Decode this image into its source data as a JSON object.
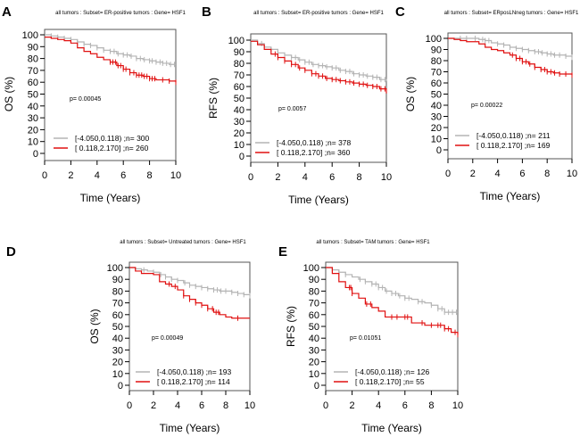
{
  "chart_data": [
    {
      "type": "line",
      "panel": "A",
      "title": "all tumors : Subset= ER-positive tumors : Gene= HSF1",
      "xlabel": "Time (Years)",
      "ylabel": "OS (%)",
      "xlim": [
        0,
        10
      ],
      "ylim": [
        0,
        100
      ],
      "xticks": [
        "0",
        "2",
        "4",
        "6",
        "8",
        "10"
      ],
      "yticks": [
        "0",
        "10",
        "20",
        "30",
        "40",
        "50",
        "60",
        "70",
        "80",
        "90",
        "100"
      ],
      "p_value": "p= 0.00045",
      "series": [
        {
          "name": "[-4.050,0.118) ;n= 300",
          "color": "#b4b4b4",
          "x": [
            0,
            0.5,
            1,
            1.5,
            2,
            2.5,
            3,
            3.5,
            4,
            4.5,
            5,
            5.5,
            6,
            6.5,
            7,
            7.5,
            8,
            8.5,
            9,
            9.5,
            10
          ],
          "y": [
            100,
            99,
            98,
            97,
            96,
            94,
            92,
            91,
            89,
            87,
            86,
            84,
            83,
            82,
            80,
            79,
            78,
            77,
            76,
            75,
            75
          ],
          "censor_x": [
            0.5,
            1,
            1.5,
            2,
            2.5,
            3,
            3.5,
            4,
            4.5,
            5,
            5.3,
            5.6,
            6,
            6.3,
            6.6,
            7,
            7.3,
            7.6,
            8,
            8.2,
            8.5,
            8.8,
            9,
            9.3,
            9.6,
            9.9
          ]
        },
        {
          "name": "[ 0.118,2.170] ;n= 260",
          "color": "#e01010",
          "x": [
            0,
            0.5,
            1,
            1.5,
            2,
            2.5,
            3,
            3.5,
            4,
            4.5,
            5,
            5.5,
            6,
            6.5,
            7,
            7.5,
            8,
            8.5,
            9,
            9.5,
            10
          ],
          "y": [
            98,
            97,
            96,
            95,
            93,
            89,
            86,
            84,
            81,
            79,
            77,
            74,
            71,
            68,
            66,
            65,
            63,
            62,
            62,
            61,
            60
          ],
          "censor_x": [
            5,
            5.2,
            5.4,
            5.6,
            5.8,
            6,
            6.2,
            6.5,
            6.8,
            7,
            7.2,
            7.4,
            7.6,
            7.8,
            8,
            8.2,
            8.4,
            9,
            9.5,
            10
          ]
        }
      ]
    },
    {
      "type": "line",
      "panel": "B",
      "title": "all tumors : Subset= ER-positive tumors : Gene= HSF1",
      "xlabel": "Time (Years)",
      "ylabel": "RFS (%)",
      "xlim": [
        0,
        10
      ],
      "ylim": [
        0,
        100
      ],
      "xticks": [
        "0",
        "2",
        "4",
        "6",
        "8",
        "10"
      ],
      "yticks": [
        "0",
        "10",
        "20",
        "30",
        "40",
        "50",
        "60",
        "70",
        "80",
        "90",
        "100"
      ],
      "p_value": "p= 0.0057",
      "series": [
        {
          "name": "[-4.050,0.118) ;n= 378",
          "color": "#b4b4b4",
          "x": [
            0,
            0.5,
            1,
            1.5,
            2,
            2.5,
            3,
            3.5,
            4,
            4.5,
            5,
            5.5,
            6,
            6.5,
            7,
            7.5,
            8,
            8.5,
            9,
            9.5,
            10
          ],
          "y": [
            100,
            97,
            94,
            92,
            89,
            87,
            85,
            83,
            81,
            79,
            78,
            77,
            76,
            74,
            73,
            71,
            70,
            69,
            68,
            66,
            65
          ],
          "censor_x": [
            0.8,
            1.5,
            2,
            2.5,
            3,
            3.3,
            3.6,
            4,
            4.3,
            4.6,
            5,
            5.3,
            5.6,
            6,
            6.3,
            6.6,
            7,
            7.3,
            7.6,
            8,
            8.3,
            8.6,
            9,
            9.3,
            9.6,
            9.9
          ]
        },
        {
          "name": "[ 0.118,2.170] ;n= 360",
          "color": "#e01010",
          "x": [
            0,
            0.5,
            1,
            1.5,
            2,
            2.5,
            3,
            3.5,
            4,
            4.5,
            5,
            5.5,
            6,
            6.5,
            7,
            7.5,
            8,
            8.5,
            9,
            9.5,
            10
          ],
          "y": [
            99,
            96,
            92,
            88,
            85,
            82,
            79,
            76,
            74,
            71,
            69,
            67,
            66,
            65,
            64,
            63,
            62,
            61,
            60,
            58,
            54
          ],
          "censor_x": [
            1.8,
            2,
            2.5,
            3,
            3.3,
            3.6,
            4,
            4.5,
            4.8,
            5,
            5.3,
            5.6,
            6,
            6.3,
            6.6,
            7,
            7.3,
            7.6,
            8,
            8.3,
            8.6,
            9,
            9.3,
            9.6,
            9.9
          ]
        }
      ]
    },
    {
      "type": "line",
      "panel": "C",
      "title": "all tumors : Subset= ERposLNneg tumors : Gene= HSF1",
      "xlabel": "Time (Years)",
      "ylabel": "OS (%)",
      "xlim": [
        0,
        10
      ],
      "ylim": [
        0,
        100
      ],
      "xticks": [
        "0",
        "2",
        "4",
        "6",
        "8",
        "10"
      ],
      "yticks": [
        "0",
        "10",
        "20",
        "30",
        "40",
        "50",
        "60",
        "70",
        "80",
        "90",
        "100"
      ],
      "p_value": "p= 0.00022",
      "series": [
        {
          "name": "[-4.050,0.118) ;n= 211",
          "color": "#b4b4b4",
          "x": [
            0,
            0.5,
            1,
            1.5,
            2,
            2.5,
            3,
            3.5,
            4,
            4.5,
            5,
            5.5,
            6,
            6.5,
            7,
            7.5,
            8,
            8.5,
            9,
            9.5,
            10
          ],
          "y": [
            100,
            100,
            100,
            100,
            100,
            99,
            98,
            96,
            95,
            94,
            92,
            91,
            90,
            89,
            88,
            87,
            86,
            85,
            85,
            84,
            83
          ],
          "censor_x": [
            1,
            1.5,
            2.2,
            2.8,
            3,
            3.3,
            4,
            4.5,
            5,
            5.5,
            6,
            6.5,
            7,
            7.3,
            7.6,
            8,
            8.3,
            8.6,
            9,
            9.5,
            10
          ]
        },
        {
          "name": "[ 0.118,2.170] ;n= 169",
          "color": "#e01010",
          "x": [
            0,
            0.5,
            1,
            1.5,
            2,
            2.5,
            3,
            3.5,
            4,
            4.5,
            5,
            5.5,
            6,
            6.5,
            7,
            7.5,
            8,
            8.5,
            9,
            9.5,
            10
          ],
          "y": [
            100,
            99,
            98,
            97,
            97,
            95,
            92,
            90,
            89,
            87,
            85,
            82,
            79,
            77,
            74,
            72,
            70,
            69,
            68,
            68,
            67
          ],
          "censor_x": [
            5.2,
            5.5,
            5.8,
            6,
            6.3,
            6.6,
            7,
            7.5,
            7.8,
            8,
            8.3,
            8.6,
            9,
            9.5,
            10
          ]
        }
      ]
    },
    {
      "type": "line",
      "panel": "D",
      "title": "all tumors : Subset= Untreated tumors : Gene= HSF1",
      "xlabel": "Time (Years)",
      "ylabel": "OS (%)",
      "xlim": [
        0,
        10
      ],
      "ylim": [
        0,
        100
      ],
      "xticks": [
        "0",
        "2",
        "4",
        "6",
        "8",
        "10"
      ],
      "yticks": [
        "0",
        "10",
        "20",
        "30",
        "40",
        "50",
        "60",
        "70",
        "80",
        "90",
        "100"
      ],
      "p_value": "p= 0.00049",
      "series": [
        {
          "name": "[-4.050,0.118) ;n= 193",
          "color": "#b4b4b4",
          "x": [
            0,
            0.5,
            1,
            1.5,
            2,
            2.5,
            3,
            3.5,
            4,
            4.5,
            5,
            5.5,
            6,
            6.5,
            7,
            7.5,
            8,
            8.5,
            9,
            9.5,
            10
          ],
          "y": [
            100,
            99,
            98,
            97,
            96,
            94,
            92,
            90,
            89,
            87,
            85,
            84,
            83,
            82,
            81,
            80,
            80,
            79,
            78,
            77,
            76
          ],
          "censor_x": [
            1.2,
            2,
            2.6,
            3,
            3.5,
            4,
            4.6,
            5,
            5.5,
            6,
            6.5,
            7,
            7.3,
            7.6,
            8,
            8.5,
            9,
            9.5,
            10
          ]
        },
        {
          "name": "[ 0.118,2.170] ;n= 114",
          "color": "#e01010",
          "x": [
            0,
            0.5,
            1,
            1.5,
            2,
            2.5,
            3,
            3.5,
            4,
            4.5,
            5,
            5.5,
            6,
            6.5,
            7,
            7.5,
            8,
            8.5,
            9,
            9.5,
            10
          ],
          "y": [
            100,
            97,
            95,
            95,
            94,
            88,
            86,
            84,
            81,
            76,
            73,
            70,
            68,
            65,
            62,
            60,
            58,
            57,
            57,
            57,
            57
          ],
          "censor_x": [
            3.3,
            3.8,
            4.5,
            5,
            5.5,
            6,
            6.5,
            6.9,
            7.2,
            7.4,
            9
          ]
        }
      ]
    },
    {
      "type": "line",
      "panel": "E",
      "title": "all tumors : Subset= TAM tumors : Gene= HSF1",
      "xlabel": "Time (Years)",
      "ylabel": "RFS (%)",
      "xlim": [
        0,
        10
      ],
      "ylim": [
        0,
        100
      ],
      "xticks": [
        "0",
        "2",
        "4",
        "6",
        "8",
        "10"
      ],
      "yticks": [
        "0",
        "10",
        "20",
        "30",
        "40",
        "50",
        "60",
        "70",
        "80",
        "90",
        "100"
      ],
      "p_value": "p= 0.01051",
      "series": [
        {
          "name": "[-4.050,0.118) ;n= 126",
          "color": "#b4b4b4",
          "x": [
            0,
            0.5,
            1,
            1.5,
            2,
            2.5,
            3,
            3.5,
            4,
            4.5,
            5,
            5.5,
            6,
            6.5,
            7,
            7.5,
            8,
            8.5,
            9,
            9.5,
            10
          ],
          "y": [
            100,
            98,
            96,
            94,
            92,
            90,
            88,
            86,
            83,
            80,
            78,
            76,
            74,
            73,
            71,
            70,
            68,
            65,
            62,
            62,
            62
          ],
          "censor_x": [
            0.5,
            1,
            1.5,
            2.6,
            3,
            3.5,
            3.8,
            4,
            4.3,
            4.6,
            5,
            5.3,
            5.6,
            6,
            6.3,
            7,
            7.3,
            8,
            8.5,
            8.8,
            9,
            9.3,
            9.6,
            9.9
          ]
        },
        {
          "name": "[ 0.118,2.170] ;n= 55",
          "color": "#e01010",
          "x": [
            0,
            0.5,
            1,
            1.5,
            2,
            2.5,
            3,
            3.5,
            4,
            4.5,
            5,
            5.5,
            6,
            6.5,
            7,
            7.5,
            8,
            8.5,
            9,
            9.5,
            10
          ],
          "y": [
            100,
            95,
            88,
            83,
            78,
            74,
            69,
            66,
            63,
            58,
            58,
            58,
            58,
            53,
            53,
            51,
            51,
            51,
            48,
            45,
            43
          ],
          "censor_x": [
            1.8,
            1.9,
            2,
            3.1,
            3.4,
            5,
            5.4,
            6,
            6.2,
            7.3,
            8,
            8.5,
            8.7,
            9,
            9.3,
            9.8,
            10
          ]
        }
      ]
    }
  ],
  "panel_letters": [
    "A",
    "B",
    "C",
    "D",
    "E"
  ]
}
